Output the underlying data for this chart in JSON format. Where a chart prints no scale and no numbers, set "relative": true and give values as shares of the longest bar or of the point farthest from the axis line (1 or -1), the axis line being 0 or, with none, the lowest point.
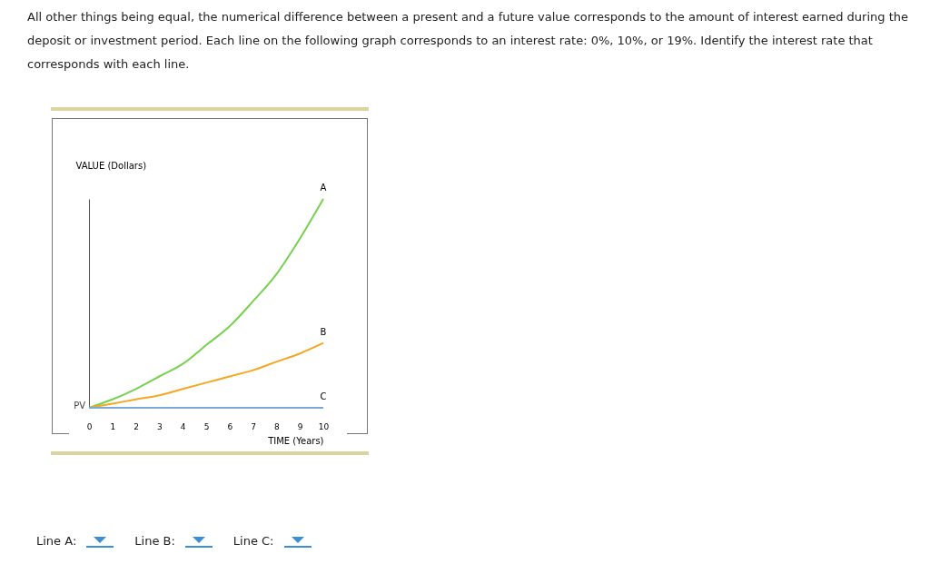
{
  "chart_data": {
    "type": "line",
    "title": "All other things being equal, the numerical difference between a present and a future value corresponds to the amount of interest earned during the deposit or investment period. Each line on the following graph corresponds to an interest rate: 0%, 10%, or 19%. Identify the interest rate that corresponds with each line.",
    "xlabel": "TIME (Years)",
    "ylabel": "VALUE (Dollars)",
    "relative": true,
    "tick_labels": "x",
    "grid": false,
    "legend": false,
    "x": [
      0,
      1,
      2,
      3,
      4,
      5,
      6,
      7,
      8,
      9,
      10
    ],
    "xlim": [
      0,
      10
    ],
    "xticks": [
      0,
      1,
      2,
      3,
      4,
      5,
      6,
      7,
      8,
      9,
      10
    ],
    "series": [
      {
        "name": "A",
        "color": "#77d14f",
        "values": [
          0,
          0.04,
          0.09,
          0.15,
          0.21,
          0.3,
          0.39,
          0.51,
          0.64,
          0.81,
          1
        ]
      },
      {
        "name": "B",
        "color": "#f5a623",
        "values": [
          0,
          0.02,
          0.04,
          0.06,
          0.09,
          0.12,
          0.15,
          0.18,
          0.22,
          0.26,
          0.31
        ]
      },
      {
        "name": "C",
        "color": "#7ba7d9",
        "values": [
          0,
          0,
          0,
          0,
          0,
          0,
          0,
          0,
          0,
          0,
          0
        ]
      }
    ],
    "annotations": [
      {
        "text": "PV",
        "x": 0,
        "y": 0
      },
      "Line A:",
      "Line B:",
      "Line C:"
    ]
  }
}
